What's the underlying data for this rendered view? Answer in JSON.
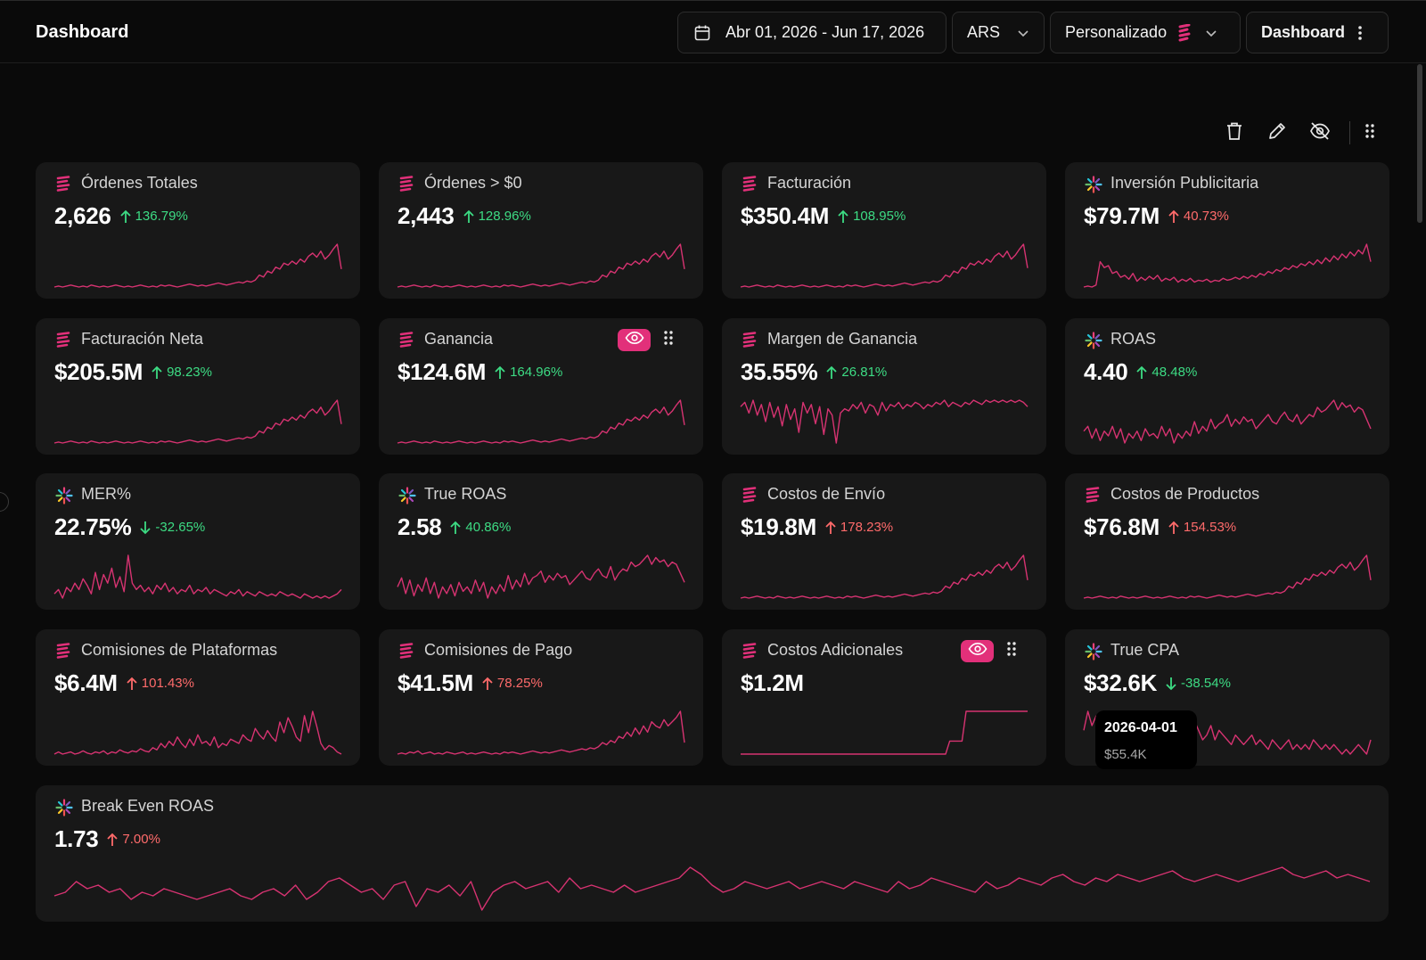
{
  "header": {
    "title": "Dashboard",
    "date_range": "Abr 01, 2026 - Jun 17, 2026",
    "currency": "ARS",
    "preset": "Personalizado",
    "view": "Dashboard"
  },
  "colors": {
    "accent": "#e2307a",
    "sparkline": "#d63371",
    "positive": "#3ddc84",
    "negative": "#ff6b6b",
    "card_bg": "#181818",
    "page_bg": "#0a0a0a"
  },
  "toolbar": {
    "icons": [
      "trash-icon",
      "pencil-icon",
      "eye-off-icon",
      "drag-handle-icon"
    ]
  },
  "cards": [
    {
      "title": "Órdenes Totales",
      "value": "2,626",
      "delta": "136.79%",
      "direction": "up",
      "sentiment": "good",
      "source": "store",
      "trend": [
        2,
        3,
        2,
        3,
        4,
        3,
        2,
        3,
        2,
        4,
        3,
        2,
        3,
        2,
        3,
        4,
        3,
        2,
        3,
        2,
        3,
        4,
        3,
        2,
        3,
        2,
        4,
        3,
        4,
        3,
        2,
        3,
        4,
        5,
        4,
        3,
        4,
        3,
        4,
        5,
        6,
        5,
        4,
        5,
        6,
        7,
        6,
        8,
        7,
        9,
        14,
        12,
        18,
        16,
        22,
        20,
        26,
        24,
        28,
        25,
        30,
        27,
        33,
        36,
        32,
        38,
        30,
        34,
        40,
        45,
        20
      ]
    },
    {
      "title": "Órdenes > $0",
      "value": "2,443",
      "delta": "128.96%",
      "direction": "up",
      "sentiment": "good",
      "source": "store",
      "trend": [
        2,
        3,
        2,
        3,
        4,
        3,
        2,
        3,
        2,
        4,
        3,
        2,
        3,
        2,
        3,
        4,
        3,
        2,
        3,
        2,
        3,
        4,
        3,
        2,
        3,
        2,
        4,
        3,
        4,
        3,
        2,
        3,
        4,
        5,
        4,
        3,
        4,
        3,
        4,
        5,
        6,
        5,
        4,
        5,
        6,
        7,
        6,
        8,
        7,
        9,
        14,
        12,
        18,
        16,
        22,
        20,
        26,
        24,
        28,
        25,
        30,
        27,
        33,
        36,
        32,
        38,
        30,
        34,
        40,
        45,
        20
      ]
    },
    {
      "title": "Facturación",
      "value": "$350.4M",
      "delta": "108.95%",
      "direction": "up",
      "sentiment": "good",
      "source": "store",
      "trend": [
        3,
        4,
        3,
        4,
        5,
        4,
        3,
        4,
        3,
        5,
        4,
        3,
        4,
        3,
        4,
        5,
        4,
        3,
        4,
        3,
        4,
        5,
        4,
        3,
        4,
        3,
        5,
        4,
        5,
        4,
        3,
        4,
        5,
        6,
        5,
        4,
        5,
        4,
        5,
        6,
        7,
        6,
        5,
        6,
        7,
        8,
        7,
        9,
        8,
        10,
        15,
        13,
        19,
        17,
        23,
        21,
        27,
        25,
        29,
        26,
        31,
        28,
        34,
        37,
        33,
        39,
        31,
        35,
        41,
        46,
        22
      ]
    },
    {
      "title": "Inversión Publicitaria",
      "value": "$79.7M",
      "delta": "40.73%",
      "direction": "up",
      "sentiment": "bad",
      "source": "ads",
      "trend": [
        4,
        5,
        4,
        6,
        30,
        24,
        26,
        18,
        20,
        14,
        16,
        12,
        18,
        10,
        14,
        11,
        15,
        12,
        16,
        10,
        13,
        11,
        14,
        9,
        12,
        10,
        13,
        9,
        11,
        10,
        12,
        9,
        11,
        10,
        13,
        11,
        12,
        14,
        12,
        15,
        13,
        16,
        14,
        18,
        16,
        20,
        18,
        22,
        20,
        24,
        22,
        26,
        24,
        28,
        26,
        30,
        27,
        32,
        28,
        34,
        30,
        36,
        32,
        38,
        34,
        40,
        36,
        42,
        38,
        48,
        30
      ]
    },
    {
      "title": "Facturación Neta",
      "value": "$205.5M",
      "delta": "98.23%",
      "direction": "up",
      "sentiment": "good",
      "source": "store",
      "trend": [
        3,
        4,
        3,
        4,
        5,
        4,
        3,
        4,
        3,
        5,
        4,
        3,
        4,
        3,
        4,
        5,
        4,
        3,
        4,
        3,
        4,
        5,
        4,
        3,
        4,
        3,
        5,
        4,
        5,
        4,
        3,
        4,
        5,
        6,
        5,
        4,
        5,
        4,
        5,
        6,
        7,
        6,
        5,
        6,
        7,
        8,
        7,
        9,
        8,
        10,
        15,
        13,
        19,
        17,
        23,
        21,
        27,
        25,
        29,
        26,
        31,
        28,
        34,
        37,
        33,
        39,
        31,
        35,
        41,
        46,
        22
      ]
    },
    {
      "title": "Ganancia",
      "value": "$124.6M",
      "delta": "164.96%",
      "direction": "up",
      "sentiment": "good",
      "source": "store",
      "hover": true,
      "trend": [
        2,
        3,
        2,
        3,
        4,
        3,
        2,
        3,
        2,
        4,
        3,
        2,
        3,
        2,
        3,
        4,
        3,
        2,
        3,
        2,
        3,
        4,
        3,
        2,
        3,
        2,
        4,
        3,
        4,
        3,
        2,
        3,
        4,
        5,
        4,
        3,
        4,
        3,
        4,
        5,
        6,
        5,
        4,
        5,
        6,
        7,
        6,
        8,
        7,
        9,
        14,
        12,
        18,
        16,
        22,
        20,
        26,
        24,
        28,
        25,
        30,
        27,
        33,
        36,
        32,
        38,
        30,
        34,
        40,
        45,
        20
      ]
    },
    {
      "title": "Margen de Ganancia",
      "value": "35.55%",
      "delta": "26.81%",
      "direction": "up",
      "sentiment": "good",
      "source": "store",
      "trend": [
        36,
        40,
        30,
        42,
        28,
        38,
        22,
        40,
        26,
        36,
        18,
        38,
        24,
        34,
        12,
        40,
        30,
        38,
        20,
        36,
        10,
        34,
        28,
        2,
        30,
        34,
        32,
        38,
        34,
        40,
        30,
        38,
        36,
        28,
        40,
        32,
        38,
        36,
        40,
        34,
        38,
        36,
        40,
        38,
        34,
        38,
        36,
        40,
        38,
        42,
        36,
        40,
        38,
        36,
        40,
        38,
        42,
        40,
        38,
        42,
        40,
        42,
        40,
        42,
        40,
        42,
        40,
        42,
        40,
        36
      ]
    },
    {
      "title": "ROAS",
      "value": "4.40",
      "delta": "48.48%",
      "direction": "up",
      "sentiment": "good",
      "source": "ads",
      "trend": [
        20,
        24,
        14,
        22,
        12,
        20,
        16,
        24,
        14,
        22,
        10,
        18,
        14,
        20,
        12,
        22,
        16,
        18,
        14,
        24,
        16,
        22,
        10,
        18,
        14,
        20,
        16,
        28,
        18,
        24,
        20,
        30,
        22,
        26,
        28,
        34,
        24,
        30,
        26,
        32,
        28,
        30,
        22,
        26,
        30,
        34,
        28,
        26,
        32,
        36,
        30,
        28,
        34,
        26,
        30,
        34,
        32,
        40,
        36,
        38,
        42,
        46,
        38,
        44,
        40,
        42,
        36,
        40,
        38,
        30,
        22
      ]
    },
    {
      "title": "MER%",
      "value": "22.75%",
      "delta": "-32.65%",
      "direction": "down",
      "sentiment": "good",
      "source": "ads",
      "trend": [
        10,
        14,
        6,
        16,
        12,
        20,
        14,
        24,
        18,
        10,
        30,
        14,
        28,
        20,
        34,
        16,
        26,
        12,
        46,
        20,
        14,
        18,
        12,
        16,
        10,
        18,
        14,
        20,
        12,
        16,
        10,
        14,
        12,
        18,
        10,
        14,
        12,
        16,
        10,
        14,
        12,
        10,
        8,
        12,
        10,
        14,
        8,
        12,
        10,
        8,
        12,
        10,
        8,
        10,
        8,
        12,
        10,
        8,
        10,
        8,
        6,
        10,
        8,
        6,
        8,
        6,
        8,
        6,
        8,
        10,
        14
      ]
    },
    {
      "title": "True ROAS",
      "value": "2.58",
      "delta": "40.86%",
      "direction": "up",
      "sentiment": "good",
      "source": "ads",
      "trend": [
        20,
        28,
        14,
        26,
        12,
        22,
        16,
        28,
        14,
        24,
        10,
        20,
        14,
        22,
        12,
        24,
        16,
        20,
        14,
        26,
        16,
        24,
        10,
        20,
        14,
        22,
        16,
        30,
        18,
        26,
        20,
        32,
        22,
        28,
        30,
        34,
        24,
        30,
        26,
        32,
        28,
        30,
        22,
        26,
        30,
        34,
        28,
        26,
        32,
        36,
        30,
        28,
        38,
        26,
        32,
        36,
        34,
        42,
        38,
        40,
        44,
        48,
        40,
        46,
        42,
        44,
        38,
        42,
        40,
        32,
        24
      ]
    },
    {
      "title": "Costos de Envío",
      "value": "$19.8M",
      "delta": "178.23%",
      "direction": "up",
      "sentiment": "bad",
      "source": "store",
      "trend": [
        2,
        3,
        2,
        3,
        4,
        3,
        2,
        3,
        2,
        4,
        3,
        2,
        3,
        2,
        3,
        4,
        3,
        2,
        3,
        2,
        3,
        4,
        3,
        2,
        3,
        2,
        4,
        3,
        4,
        3,
        2,
        3,
        4,
        5,
        4,
        3,
        4,
        3,
        4,
        5,
        6,
        5,
        4,
        5,
        6,
        7,
        6,
        8,
        7,
        9,
        14,
        12,
        18,
        16,
        22,
        20,
        26,
        24,
        28,
        25,
        30,
        27,
        33,
        36,
        32,
        38,
        30,
        34,
        40,
        45,
        20
      ]
    },
    {
      "title": "Costos de Productos",
      "value": "$76.8M",
      "delta": "154.53%",
      "direction": "up",
      "sentiment": "bad",
      "source": "store",
      "trend": [
        2,
        3,
        2,
        3,
        4,
        3,
        2,
        3,
        2,
        4,
        3,
        2,
        3,
        2,
        3,
        4,
        3,
        2,
        3,
        2,
        3,
        4,
        3,
        2,
        3,
        2,
        4,
        3,
        4,
        3,
        2,
        3,
        4,
        5,
        4,
        3,
        4,
        3,
        4,
        5,
        6,
        5,
        4,
        5,
        6,
        7,
        6,
        8,
        7,
        9,
        14,
        12,
        18,
        16,
        22,
        20,
        26,
        24,
        28,
        25,
        30,
        27,
        33,
        36,
        32,
        38,
        30,
        34,
        40,
        45,
        20
      ]
    },
    {
      "title": "Comisiones de Plataformas",
      "value": "$6.4M",
      "delta": "101.43%",
      "direction": "up",
      "sentiment": "bad",
      "source": "store",
      "trend": [
        4,
        6,
        4,
        5,
        6,
        4,
        5,
        7,
        5,
        4,
        6,
        5,
        7,
        4,
        6,
        5,
        8,
        6,
        5,
        7,
        6,
        9,
        7,
        6,
        10,
        8,
        14,
        10,
        16,
        12,
        20,
        14,
        10,
        18,
        12,
        22,
        14,
        16,
        12,
        20,
        10,
        14,
        12,
        18,
        16,
        14,
        22,
        18,
        16,
        28,
        22,
        18,
        26,
        20,
        16,
        34,
        24,
        38,
        30,
        20,
        16,
        40,
        24,
        44,
        30,
        14,
        8,
        12,
        10,
        6,
        4
      ]
    },
    {
      "title": "Comisiones de Pago",
      "value": "$41.5M",
      "delta": "78.25%",
      "direction": "up",
      "sentiment": "bad",
      "source": "store",
      "trend": [
        3,
        4,
        3,
        5,
        4,
        6,
        3,
        4,
        5,
        3,
        4,
        3,
        5,
        4,
        3,
        4,
        5,
        3,
        4,
        3,
        4,
        5,
        4,
        3,
        4,
        3,
        5,
        4,
        5,
        4,
        3,
        4,
        5,
        6,
        5,
        4,
        5,
        4,
        5,
        6,
        7,
        6,
        5,
        6,
        7,
        8,
        7,
        9,
        8,
        10,
        14,
        12,
        16,
        14,
        20,
        18,
        24,
        20,
        28,
        22,
        30,
        24,
        34,
        30,
        28,
        36,
        30,
        34,
        38,
        44,
        14
      ]
    },
    {
      "title": "Costos Adicionales",
      "value": "$1.2M",
      "delta": "",
      "direction": "none",
      "sentiment": "none",
      "source": "store",
      "hover": true,
      "trend": [
        2,
        2,
        2,
        2,
        2,
        2,
        2,
        2,
        2,
        2,
        2,
        2,
        2,
        2,
        2,
        2,
        2,
        2,
        2,
        2,
        2,
        2,
        2,
        2,
        2,
        2,
        2,
        2,
        2,
        2,
        2,
        2,
        2,
        2,
        2,
        2,
        2,
        2,
        2,
        2,
        2,
        2,
        2,
        2,
        2,
        2,
        2,
        2,
        2,
        2,
        2,
        16,
        16,
        16,
        16,
        48,
        48,
        48,
        48,
        48,
        48,
        48,
        48,
        48,
        48,
        48,
        48,
        48,
        48,
        48,
        48
      ]
    },
    {
      "title": "True CPA",
      "value": "$32.6K",
      "delta": "-38.54%",
      "direction": "down",
      "sentiment": "good",
      "source": "ads",
      "trend": [
        14,
        22,
        16,
        20,
        14,
        18,
        12,
        16,
        14,
        20,
        12,
        18,
        14,
        16,
        22,
        12,
        20,
        14,
        18,
        10,
        16,
        12,
        14,
        20,
        10,
        16,
        12,
        18,
        14,
        10,
        12,
        16,
        10,
        14,
        12,
        10,
        8,
        12,
        10,
        8,
        10,
        12,
        8,
        10,
        8,
        6,
        10,
        8,
        6,
        8,
        10,
        6,
        8,
        6,
        8,
        6,
        10,
        8,
        6,
        8,
        6,
        8,
        6,
        4,
        6,
        4,
        6,
        8,
        6,
        4,
        10
      ]
    },
    {
      "title": "Break Even ROAS",
      "value": "1.73",
      "delta": "7.00%",
      "direction": "up",
      "sentiment": "bad",
      "source": "ads",
      "wide": true,
      "trend": [
        20,
        22,
        28,
        24,
        26,
        22,
        24,
        18,
        22,
        20,
        24,
        22,
        20,
        18,
        20,
        22,
        24,
        20,
        18,
        22,
        24,
        20,
        26,
        18,
        22,
        28,
        30,
        26,
        22,
        24,
        18,
        26,
        28,
        14,
        24,
        22,
        26,
        20,
        28,
        12,
        22,
        26,
        28,
        24,
        26,
        28,
        22,
        30,
        24,
        26,
        24,
        22,
        26,
        22,
        24,
        26,
        28,
        30,
        36,
        32,
        26,
        22,
        24,
        28,
        26,
        24,
        26,
        28,
        24,
        26,
        28,
        26,
        24,
        28,
        26,
        24,
        22,
        28,
        24,
        26,
        30,
        28,
        26,
        24,
        22,
        28,
        24,
        26,
        30,
        28,
        26,
        30,
        32,
        28,
        26,
        30,
        28,
        32,
        30,
        28,
        30,
        32,
        34,
        30,
        28,
        30,
        32,
        30,
        28,
        30,
        32,
        34,
        36,
        32,
        30,
        32,
        34,
        30,
        32,
        30,
        28
      ]
    }
  ],
  "tooltip": {
    "date": "2026-04-01",
    "value": "$55.4K"
  }
}
